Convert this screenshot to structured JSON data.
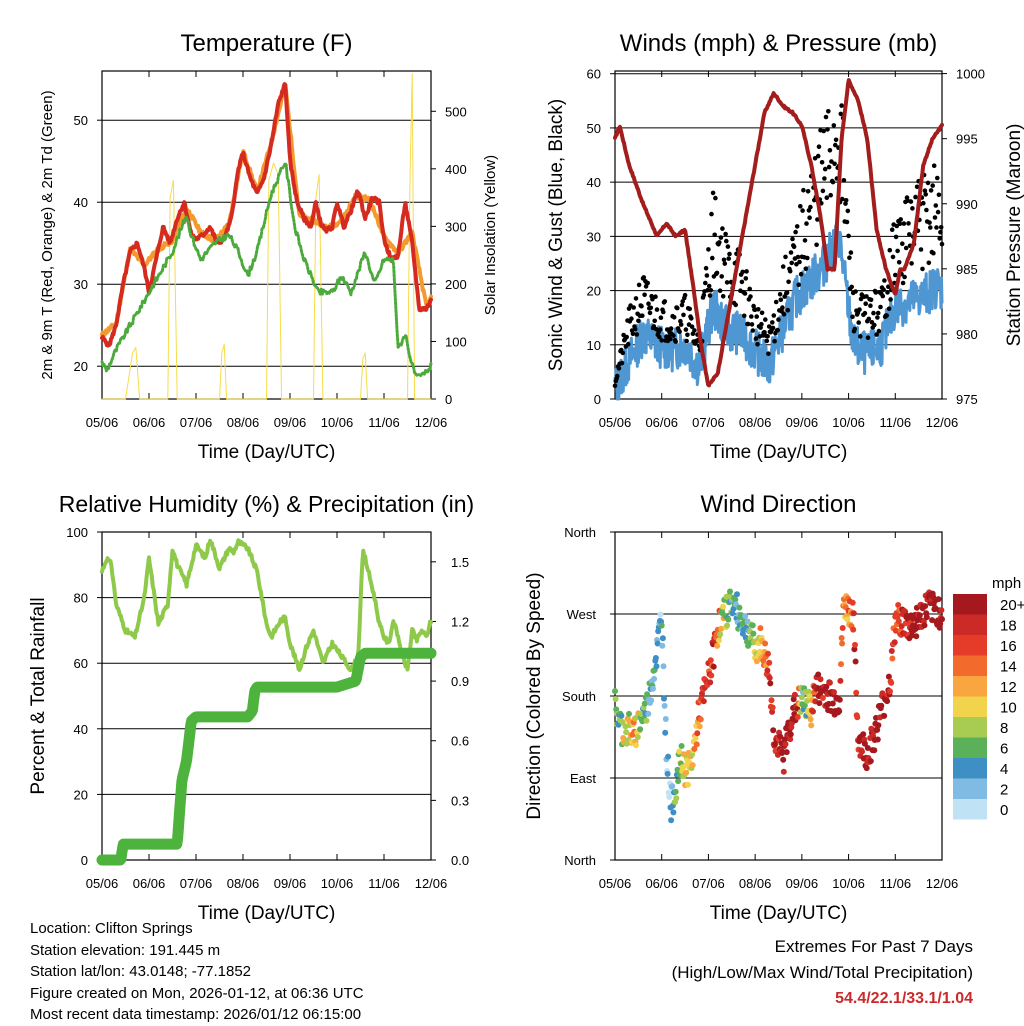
{
  "colors": {
    "temp2m": "#d42a20",
    "temp9m": "#f29a2e",
    "dewpoint": "#4caa3c",
    "solar": "#f5dc4a",
    "wind": "#4f97d3",
    "gust": "#000000",
    "pressure": "#a31d1d",
    "rh": "#8ec94a",
    "precip": "#4db33d"
  },
  "info": {
    "location": "Location: Clifton Springs",
    "elevation": "Station elevation: 191.445 m",
    "latlon": "Station lat/lon: 43.0148; -77.1852",
    "created": "Figure created on Mon, 2026-01-12, at 06:36 UTC",
    "recent": "Most recent data timestamp: 2026/01/12 06:15:00"
  },
  "extremes": {
    "title": "Extremes For Past 7 Days",
    "subtitle": "(High/Low/Max Wind/Total Precipitation)",
    "values": "54.4/22.1/33.1/1.04"
  },
  "chart_data": [
    {
      "id": "temperature",
      "type": "line",
      "title": "Temperature (F)",
      "xlabel": "Time (Day/UTC)",
      "ylabel": "2m & 9m T (Red, Orange) & 2m Td (Green)",
      "y2label": "Solar Insolation (Yellow)",
      "xticks": [
        "05/06",
        "06/06",
        "07/06",
        "08/06",
        "09/06",
        "10/06",
        "11/06",
        "12/06"
      ],
      "xlim": [
        0,
        7
      ],
      "ylim": [
        16,
        56
      ],
      "yticks": [
        20,
        30,
        40,
        50
      ],
      "y2lim": [
        0,
        570
      ],
      "y2ticks": [
        0,
        100,
        200,
        300,
        400,
        500
      ],
      "series": [
        {
          "name": "2m T",
          "color_key": "temp2m",
          "x": [
            0,
            0.15,
            0.3,
            0.45,
            0.6,
            0.75,
            0.9,
            1.0,
            1.15,
            1.3,
            1.45,
            1.6,
            1.75,
            1.9,
            2.0,
            2.15,
            2.3,
            2.45,
            2.6,
            2.75,
            2.9,
            3.0,
            3.15,
            3.3,
            3.45,
            3.6,
            3.75,
            3.9,
            4.0,
            4.15,
            4.3,
            4.45,
            4.55,
            4.65,
            4.75,
            4.9,
            5.0,
            5.15,
            5.3,
            5.45,
            5.6,
            5.75,
            5.9,
            6.0,
            6.15,
            6.3,
            6.45,
            6.6,
            6.75,
            6.9,
            7.0
          ],
          "y": [
            23.5,
            22.5,
            25,
            30,
            34,
            35,
            32,
            29,
            33,
            37,
            35,
            38,
            40,
            36,
            35.5,
            36,
            37,
            35,
            35.5,
            38,
            44,
            46,
            43,
            41,
            43,
            47,
            52,
            54.5,
            45,
            40,
            38,
            37,
            40,
            37.5,
            36.5,
            37,
            40,
            37,
            39,
            41.5,
            38,
            40.5,
            40,
            35.5,
            33,
            33.5,
            40,
            35,
            27,
            27,
            28
          ]
        },
        {
          "name": "9m T",
          "color_key": "temp9m",
          "x": [
            0,
            0.3,
            0.6,
            0.9,
            1.2,
            1.5,
            1.8,
            2.1,
            2.4,
            2.7,
            3.0,
            3.3,
            3.6,
            3.9,
            4.2,
            4.5,
            4.8,
            5.1,
            5.4,
            5.7,
            6.0,
            6.3,
            6.6,
            6.9,
            7.0
          ],
          "y": [
            23.8,
            25.2,
            34.3,
            32.3,
            34.3,
            35.3,
            39.3,
            36.3,
            35.3,
            37.3,
            46.3,
            41.3,
            47.3,
            54.3,
            38.3,
            37.8,
            36.8,
            37.8,
            40.8,
            40.3,
            35.8,
            33.8,
            36.3,
            27.3,
            28.3
          ]
        },
        {
          "name": "2m Td",
          "color_key": "dewpoint",
          "x": [
            0,
            0.1,
            0.3,
            0.6,
            0.9,
            1.0,
            1.2,
            1.5,
            1.8,
            1.9,
            2.1,
            2.4,
            2.7,
            2.9,
            3.1,
            3.3,
            3.6,
            3.9,
            4.1,
            4.3,
            4.6,
            4.9,
            5.1,
            5.3,
            5.6,
            5.8,
            6.0,
            6.2,
            6.3,
            6.45,
            6.6,
            6.7,
            6.85,
            7.0
          ],
          "y": [
            20.5,
            19.5,
            22,
            25,
            28,
            29,
            31,
            34,
            38.5,
            36,
            33,
            35,
            36,
            34,
            31,
            34,
            41,
            45,
            37,
            33,
            29,
            29,
            31,
            29,
            34,
            30,
            33,
            33,
            22,
            24,
            20,
            18.5,
            19,
            20
          ]
        },
        {
          "name": "Solar",
          "color_key": "solar",
          "axis": "y2",
          "x": [
            0,
            0.5,
            0.65,
            0.72,
            0.8,
            1.4,
            1.45,
            1.52,
            1.6,
            1.95,
            2.5,
            2.55,
            2.6,
            2.65,
            3.5,
            3.55,
            3.65,
            3.75,
            3.82,
            4.5,
            4.55,
            4.62,
            4.7,
            5.5,
            5.55,
            5.6,
            5.65,
            6.5,
            6.55,
            6.6,
            6.65,
            7.0
          ],
          "y": [
            0,
            0,
            80,
            90,
            0,
            0,
            350,
            380,
            0,
            0,
            0,
            80,
            95,
            0,
            0,
            380,
            410,
            390,
            0,
            0,
            350,
            390,
            0,
            0,
            70,
            80,
            0,
            0,
            370,
            565,
            0,
            0
          ]
        }
      ]
    },
    {
      "id": "winds",
      "type": "scatter",
      "title": "Winds (mph) & Pressure (mb)",
      "xlabel": "Time (Day/UTC)",
      "ylabel": "Sonic Wind & Gust (Blue, Black)",
      "y2label": "Station Pressure (Maroon)",
      "xticks": [
        "05/06",
        "06/06",
        "07/06",
        "08/06",
        "09/06",
        "10/06",
        "11/06",
        "12/06"
      ],
      "xlim": [
        0,
        7
      ],
      "ylim": [
        0,
        60.5
      ],
      "yticks": [
        0,
        10,
        20,
        30,
        40,
        50,
        60
      ],
      "y2lim": [
        975,
        1000.2
      ],
      "y2ticks": [
        975,
        980,
        985,
        990,
        995,
        1000
      ],
      "series": [
        {
          "name": "Sonic Wind",
          "color_key": "wind",
          "x": [
            0,
            0.3,
            0.6,
            0.9,
            1.2,
            1.5,
            1.8,
            2.1,
            2.4,
            2.7,
            3.0,
            3.3,
            3.6,
            3.9,
            4.2,
            4.5,
            4.8,
            5.1,
            5.4,
            5.7,
            6.0,
            6.3,
            6.6,
            6.9,
            7.0
          ],
          "y": [
            2,
            7,
            12,
            10,
            9,
            10,
            6,
            17,
            13,
            12,
            9,
            6,
            13,
            19,
            22,
            25,
            30,
            10,
            8,
            10,
            17,
            18,
            19,
            21,
            20
          ]
        },
        {
          "name": "Gust",
          "color_key": "gust",
          "x": [
            0,
            0.3,
            0.6,
            0.9,
            1.2,
            1.5,
            1.8,
            2.1,
            2.4,
            2.7,
            3.0,
            3.3,
            3.6,
            3.9,
            4.2,
            4.5,
            4.8,
            5.1,
            5.4,
            5.7,
            6.0,
            6.3,
            6.6,
            6.9,
            7.0
          ],
          "y": [
            3,
            12,
            17,
            14,
            13,
            14,
            9,
            28,
            22,
            20,
            13,
            10,
            18,
            24,
            33,
            38,
            46,
            15,
            14,
            15,
            25,
            28,
            30,
            32,
            30
          ]
        },
        {
          "name": "Pressure",
          "color_key": "pressure",
          "axis": "y2",
          "x": [
            0,
            0.1,
            0.3,
            0.6,
            0.9,
            1.1,
            1.3,
            1.5,
            1.7,
            1.85,
            2.0,
            2.2,
            2.4,
            2.6,
            2.8,
            3.0,
            3.2,
            3.4,
            3.6,
            3.8,
            4.0,
            4.2,
            4.4,
            4.55,
            4.7,
            4.85,
            5.0,
            5.2,
            5.4,
            5.6,
            5.8,
            6.0,
            6.1,
            6.2,
            6.4,
            6.6,
            6.8,
            7.0
          ],
          "y": [
            995,
            996,
            993,
            990,
            987.5,
            988.5,
            987.5,
            988,
            983,
            979,
            976,
            977,
            981,
            985,
            989,
            993,
            997,
            998.5,
            997.5,
            997,
            996,
            993,
            989,
            985,
            985,
            995,
            999.5,
            998,
            995,
            988,
            985,
            983,
            985,
            985,
            987,
            993,
            995,
            996
          ]
        }
      ]
    },
    {
      "id": "humidity",
      "type": "line",
      "title": "Relative Humidity (%) & Precipitation (in)",
      "xlabel": "Time (Day/UTC)",
      "ylabel": "Percent & Total Rainfall",
      "xticks": [
        "05/06",
        "06/06",
        "07/06",
        "08/06",
        "09/06",
        "10/06",
        "11/06",
        "12/06"
      ],
      "xlim": [
        0,
        7
      ],
      "ylim": [
        0,
        100
      ],
      "yticks": [
        0,
        20,
        40,
        60,
        80,
        100
      ],
      "y2lim": [
        0,
        1.65
      ],
      "y2ticks": [
        "0.0",
        "0.3",
        "0.6",
        "0.9",
        "1.2",
        "1.5"
      ],
      "series": [
        {
          "name": "Relative Humidity",
          "color_key": "rh",
          "x": [
            0,
            0.1,
            0.2,
            0.3,
            0.4,
            0.5,
            0.7,
            0.9,
            1.0,
            1.2,
            1.4,
            1.5,
            1.6,
            1.8,
            2.0,
            2.2,
            2.3,
            2.5,
            2.7,
            2.8,
            2.9,
            3.1,
            3.3,
            3.5,
            3.6,
            3.8,
            3.9,
            4.0,
            4.2,
            4.35,
            4.5,
            4.7,
            4.9,
            5.1,
            5.3,
            5.45,
            5.55,
            5.6,
            5.7,
            5.8,
            5.9,
            6.0,
            6.1,
            6.2,
            6.3,
            6.4,
            6.5,
            6.6,
            6.7,
            6.8,
            6.9,
            7.0
          ],
          "y": [
            88,
            92,
            90,
            78,
            74,
            70,
            68,
            80,
            92,
            72,
            78,
            95,
            90,
            84,
            96,
            92,
            98,
            89,
            95,
            94,
            97,
            95,
            88,
            72,
            68,
            73,
            74,
            66,
            58,
            65,
            70,
            60,
            66,
            62,
            58,
            62,
            94,
            92,
            86,
            80,
            72,
            68,
            66,
            73,
            68,
            62,
            58,
            70,
            67,
            70,
            68,
            73
          ]
        },
        {
          "name": "Total Precipitation",
          "color_key": "precip",
          "axis": "y2",
          "x": [
            0,
            0.4,
            0.45,
            1.6,
            1.7,
            1.8,
            1.9,
            2.0,
            2.1,
            3.0,
            3.1,
            3.2,
            3.25,
            3.3,
            3.9,
            4.0,
            4.1,
            4.2,
            4.3,
            5.0,
            5.4,
            5.5,
            5.6,
            6.0,
            7.0
          ],
          "y": [
            0,
            0,
            0.08,
            0.08,
            0.4,
            0.5,
            0.7,
            0.72,
            0.72,
            0.72,
            0.72,
            0.75,
            0.85,
            0.87,
            0.87,
            0.87,
            0.87,
            0.87,
            0.87,
            0.87,
            0.9,
            1.02,
            1.04,
            1.04,
            1.04
          ]
        }
      ]
    },
    {
      "id": "wind_direction",
      "type": "scatter",
      "title": "Wind Direction",
      "xlabel": "Time (Day/UTC)",
      "ylabel": "Direction (Colored By Speed)",
      "xticks": [
        "05/06",
        "06/06",
        "07/06",
        "08/06",
        "09/06",
        "10/06",
        "11/06",
        "12/06"
      ],
      "xlim": [
        0,
        7
      ],
      "ylim": [
        0,
        360
      ],
      "yticks": [
        "North",
        "East",
        "South",
        "West",
        "North"
      ],
      "legend": {
        "title": "mph",
        "levels": [
          "20+",
          "18",
          "16",
          "14",
          "12",
          "10",
          "8",
          "6",
          "4",
          "2",
          "0"
        ],
        "colors": [
          "#a5191e",
          "#cc2a26",
          "#e53c2a",
          "#f26b2d",
          "#f9a640",
          "#f2d34c",
          "#a8cc52",
          "#5bb05a",
          "#3e8fc4",
          "#80bbe3",
          "#bfe3f5"
        ]
      },
      "series": [
        {
          "name": "Direction",
          "x": [
            0,
            0.1,
            0.2,
            0.3,
            0.4,
            0.5,
            0.6,
            0.7,
            0.8,
            0.9,
            1.0,
            1.1,
            1.2,
            1.3,
            1.4,
            1.5,
            1.6,
            1.7,
            1.8,
            1.9,
            2.0,
            2.1,
            2.2,
            2.3,
            2.4,
            2.5,
            2.6,
            2.7,
            2.8,
            2.9,
            3.0,
            3.1,
            3.2,
            3.3,
            3.4,
            3.5,
            3.6,
            3.7,
            3.8,
            3.9,
            4.0,
            4.1,
            4.2,
            4.3,
            4.4,
            4.5,
            4.6,
            4.7,
            4.8,
            4.9,
            5.0,
            5.1,
            5.2,
            5.3,
            5.4,
            5.5,
            5.6,
            5.7,
            5.8,
            5.9,
            6.0,
            6.1,
            6.2,
            6.3,
            6.4,
            6.5,
            6.6,
            6.7,
            6.8,
            6.9,
            7.0
          ],
          "y": [
            170,
            150,
            140,
            145,
            135,
            150,
            160,
            170,
            200,
            230,
            270,
            120,
            60,
            80,
            110,
            100,
            100,
            125,
            160,
            180,
            200,
            225,
            255,
            265,
            275,
            285,
            275,
            265,
            255,
            250,
            230,
            240,
            225,
            210,
            140,
            125,
            110,
            140,
            160,
            170,
            175,
            170,
            165,
            190,
            185,
            185,
            180,
            175,
            175,
            280,
            275,
            270,
            135,
            125,
            115,
            130,
            145,
            165,
            180,
            200,
            260,
            265,
            260,
            255,
            260,
            265,
            270,
            280,
            275,
            275,
            270
          ],
          "speed": [
            5,
            6,
            10,
            9,
            12,
            10,
            6,
            5,
            4,
            3,
            3,
            3,
            3,
            6,
            9,
            11,
            10,
            12,
            14,
            17,
            17,
            18,
            14,
            9,
            7,
            5,
            4,
            4,
            3,
            6,
            8,
            11,
            13,
            16,
            18,
            19,
            20,
            21,
            20,
            19,
            5,
            6,
            14,
            18,
            19,
            20,
            20,
            20,
            20,
            12,
            14,
            16,
            18,
            19,
            20,
            20,
            20,
            20,
            19,
            18,
            17,
            16,
            18,
            19,
            20,
            20,
            20,
            20,
            20,
            21,
            20
          ]
        }
      ]
    }
  ]
}
